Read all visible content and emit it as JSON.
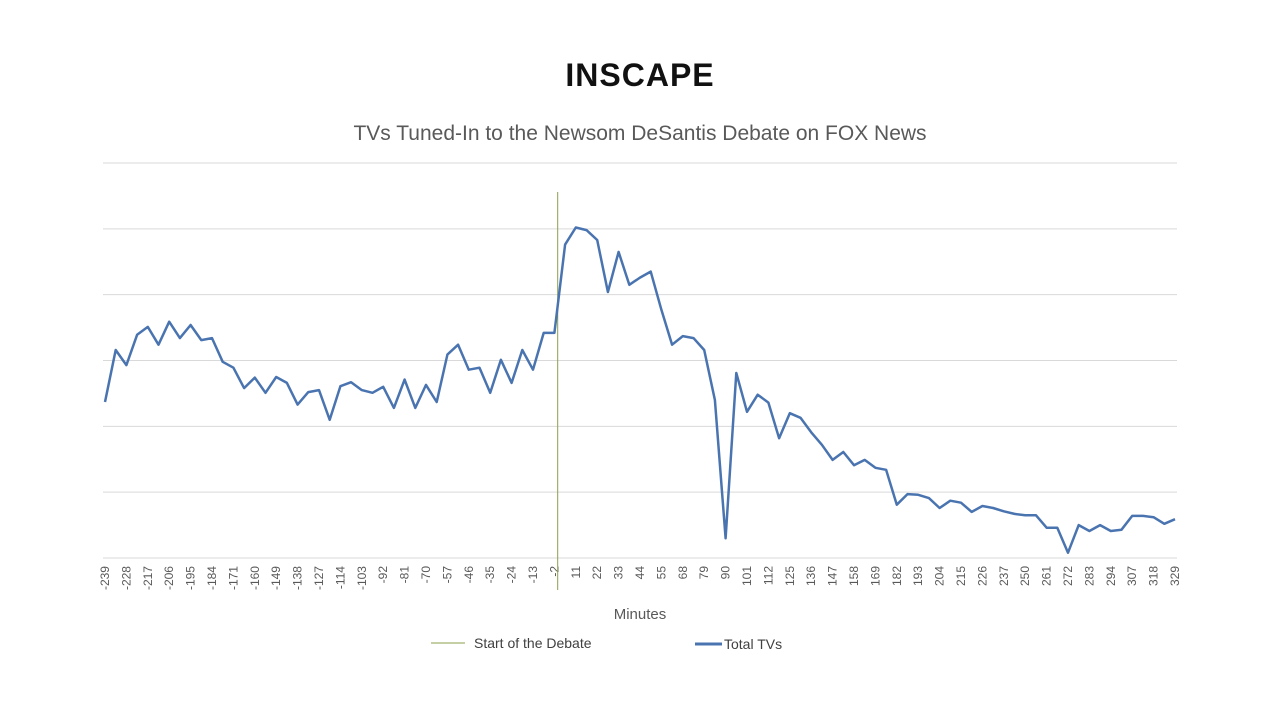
{
  "brand": "INSCAPE",
  "chart_data": {
    "type": "line",
    "title": "TVs Tuned-In to the Newsom DeSantis Debate on FOX News",
    "x_label": "Minutes",
    "categories": [
      "-239",
      null,
      "-228",
      null,
      "-217",
      null,
      "-206",
      null,
      "-195",
      null,
      "-184",
      null,
      "-171",
      null,
      "-160",
      null,
      "-149",
      null,
      "-138",
      null,
      "-127",
      null,
      "-114",
      null,
      "-103",
      null,
      "-92",
      null,
      "-81",
      null,
      "-70",
      null,
      "-57",
      null,
      "-46",
      null,
      "-35",
      null,
      "-24",
      null,
      "-13",
      null,
      "-2",
      null,
      "11",
      null,
      "22",
      null,
      "33",
      null,
      "44",
      null,
      "55",
      null,
      "68",
      null,
      "79",
      null,
      "90",
      null,
      "101",
      null,
      "112",
      null,
      "125",
      null,
      "136",
      null,
      "147",
      null,
      "158",
      null,
      "169",
      null,
      "182",
      null,
      "193",
      null,
      "204",
      null,
      "215",
      null,
      "226",
      null,
      "237",
      null,
      "250",
      null,
      "261",
      null,
      "272",
      null,
      "283",
      null,
      "294",
      null,
      "307",
      null,
      "318",
      null,
      "329"
    ],
    "series": [
      {
        "name": "Total TVs",
        "color": "#4a74b0",
        "values": [
          2.37,
          3.16,
          2.93,
          3.39,
          3.51,
          3.24,
          3.59,
          3.34,
          3.54,
          3.31,
          3.34,
          2.98,
          2.89,
          2.58,
          2.74,
          2.51,
          2.75,
          2.66,
          2.33,
          2.52,
          2.55,
          2.1,
          2.61,
          2.67,
          2.55,
          2.51,
          2.6,
          2.28,
          2.71,
          2.28,
          2.63,
          2.37,
          3.09,
          3.24,
          2.86,
          2.89,
          2.51,
          3.01,
          2.66,
          3.16,
          2.86,
          3.42,
          3.42,
          4.76,
          5.02,
          4.98,
          4.83,
          4.04,
          4.65,
          4.15,
          4.26,
          4.35,
          3.77,
          3.24,
          3.37,
          3.34,
          3.16,
          2.4,
          0.3,
          2.81,
          2.22,
          2.48,
          2.36,
          1.82,
          2.2,
          2.13,
          1.91,
          1.72,
          1.49,
          1.61,
          1.41,
          1.49,
          1.37,
          1.34,
          0.81,
          0.97,
          0.96,
          0.91,
          0.76,
          0.87,
          0.84,
          0.7,
          0.79,
          0.76,
          0.71,
          0.67,
          0.65,
          0.65,
          0.46,
          0.46,
          0.08,
          0.5,
          0.41,
          0.5,
          0.41,
          0.43,
          0.64,
          0.64,
          0.62,
          0.52,
          0.59
        ]
      }
    ],
    "vline": {
      "name": "Start of the Debate",
      "color": "#8aa04a",
      "at": 0
    },
    "ylim": [
      0,
      6
    ],
    "ygrid": [
      0,
      1,
      2,
      3,
      4,
      5,
      6
    ],
    "grid": true
  }
}
